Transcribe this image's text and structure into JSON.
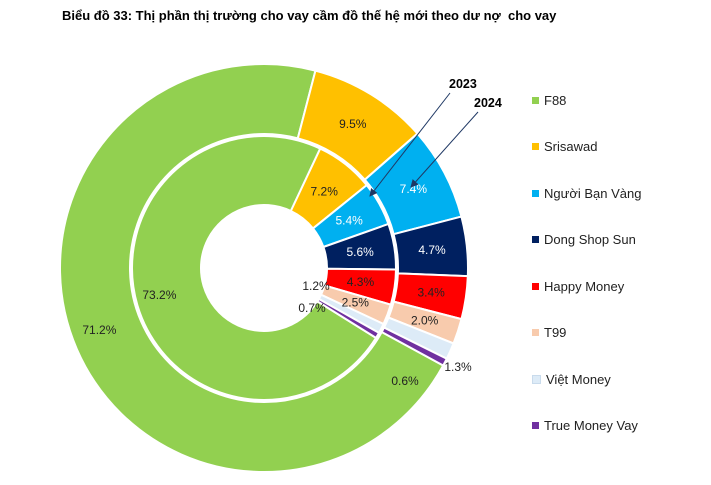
{
  "chart_data": {
    "type": "pie",
    "subtype": "nested-donut",
    "title": "Biểu đồ 33: Thị phần thị trường cho vay cầm đồ thế hệ mới theo dư nợ  cho vay",
    "categories": [
      "F88",
      "Srisawad",
      "Người Bạn Vàng",
      "Dong Shop Sun",
      "Happy Money",
      "T99",
      "Việt Money",
      "True Money Vay"
    ],
    "series": [
      {
        "name": "2023",
        "ring": "inner",
        "values": [
          73.2,
          7.2,
          5.4,
          5.6,
          4.3,
          2.5,
          1.2,
          0.7
        ],
        "labels": [
          "73.2%",
          "7.2%",
          "5.4%",
          "5.6%",
          "4.3%",
          "2.5%",
          "1.2%",
          "0.7%"
        ]
      },
      {
        "name": "2024",
        "ring": "outer",
        "values": [
          71.2,
          9.5,
          7.4,
          4.7,
          3.4,
          2.0,
          1.3,
          0.6
        ],
        "labels": [
          "71.2%",
          "9.5%",
          "7.4%",
          "4.7%",
          "3.4%",
          "2.0%",
          "1.3%",
          "0.6%"
        ]
      }
    ],
    "colors": [
      "#92D050",
      "#FFC000",
      "#00B0F0",
      "#002060",
      "#FF0000",
      "#F8CBAD",
      "#DDEBF7",
      "#7030A0"
    ],
    "legend": {
      "position": "right"
    },
    "annotations": [
      "2023",
      "2024"
    ]
  }
}
